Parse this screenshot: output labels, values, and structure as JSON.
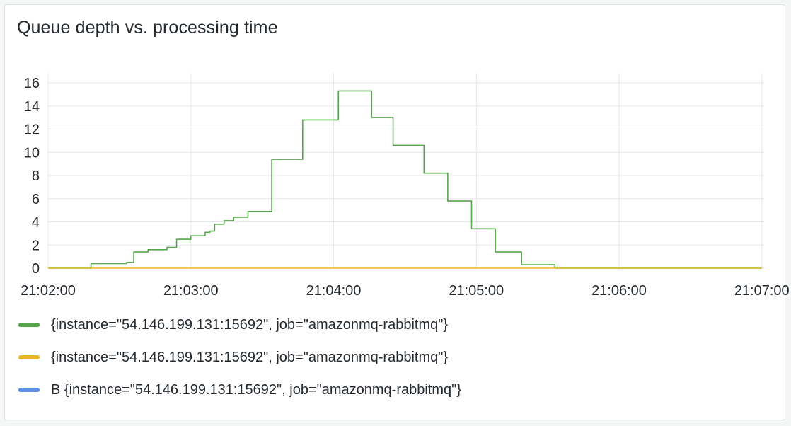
{
  "panel": {
    "title": "Queue depth vs. processing time"
  },
  "chart_data": {
    "type": "line",
    "xlim": [
      "21:02:00",
      "21:07:00"
    ],
    "ylim": [
      0,
      16
    ],
    "yticks": [
      0,
      2,
      4,
      6,
      8,
      10,
      12,
      14,
      16
    ],
    "xticks": [
      "21:02:00",
      "21:03:00",
      "21:04:00",
      "21:05:00",
      "21:06:00",
      "21:07:00"
    ],
    "grid": true,
    "legend_placement": "bottom",
    "series": [
      {
        "name": "{instance=\"54.146.199.131:15692\", job=\"amazonmq-rabbitmq\"}",
        "color": "#56a64b",
        "step": true,
        "points": [
          [
            "21:02:00",
            0
          ],
          [
            "21:02:18",
            0.4
          ],
          [
            "21:02:33",
            0.5
          ],
          [
            "21:02:36",
            1.4
          ],
          [
            "21:02:42",
            1.6
          ],
          [
            "21:02:50",
            1.8
          ],
          [
            "21:02:54",
            2.5
          ],
          [
            "21:03:00",
            2.8
          ],
          [
            "21:03:06",
            3.1
          ],
          [
            "21:03:08",
            3.2
          ],
          [
            "21:03:10",
            3.8
          ],
          [
            "21:03:14",
            4.1
          ],
          [
            "21:03:18",
            4.4
          ],
          [
            "21:03:24",
            4.9
          ],
          [
            "21:03:34",
            9.4
          ],
          [
            "21:03:47",
            12.8
          ],
          [
            "21:04:02",
            15.3
          ],
          [
            "21:04:16",
            13.0
          ],
          [
            "21:04:25",
            10.6
          ],
          [
            "21:04:38",
            8.2
          ],
          [
            "21:04:48",
            5.8
          ],
          [
            "21:04:58",
            3.4
          ],
          [
            "21:05:08",
            1.4
          ],
          [
            "21:05:19",
            0.3
          ],
          [
            "21:05:33",
            0
          ],
          [
            "21:07:00",
            0
          ]
        ]
      },
      {
        "name": "{instance=\"54.146.199.131:15692\", job=\"amazonmq-rabbitmq\"}",
        "color": "#e5b728",
        "step": false,
        "points": [
          [
            "21:02:00",
            0
          ],
          [
            "21:07:00",
            0
          ]
        ]
      },
      {
        "name": "B {instance=\"54.146.199.131:15692\", job=\"amazonmq-rabbitmq\"}",
        "color": "#5f8ee8",
        "step": false,
        "points": []
      }
    ]
  }
}
